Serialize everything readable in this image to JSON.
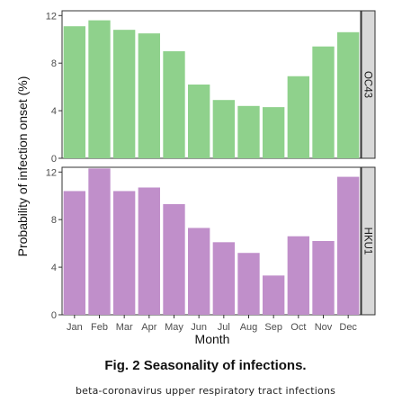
{
  "chart_data": {
    "type": "bar",
    "categories": [
      "Jan",
      "Feb",
      "Mar",
      "Apr",
      "May",
      "Jun",
      "Jul",
      "Aug",
      "Sep",
      "Oct",
      "Nov",
      "Dec"
    ],
    "xlabel": "Month",
    "ylabel": "Probability of infection onset (%)",
    "ylim": [
      0,
      12.4
    ],
    "yticks": [
      "0",
      "4",
      "8",
      "12"
    ],
    "grid": false,
    "panels": [
      {
        "name": "OC43",
        "color": "#8fd18c",
        "values": [
          11.1,
          11.6,
          10.8,
          10.5,
          9.0,
          6.2,
          4.9,
          4.4,
          4.3,
          6.9,
          9.4,
          10.6
        ]
      },
      {
        "name": "HKU1",
        "color": "#c08fca",
        "values": [
          10.4,
          12.3,
          10.4,
          10.7,
          9.3,
          7.3,
          6.1,
          5.2,
          3.3,
          6.6,
          6.2,
          11.6
        ]
      }
    ]
  },
  "caption": {
    "title": "Fig. 2 Seasonality of infections.",
    "subtitle": "beta-coronavirus upper respiratory tract infections"
  }
}
